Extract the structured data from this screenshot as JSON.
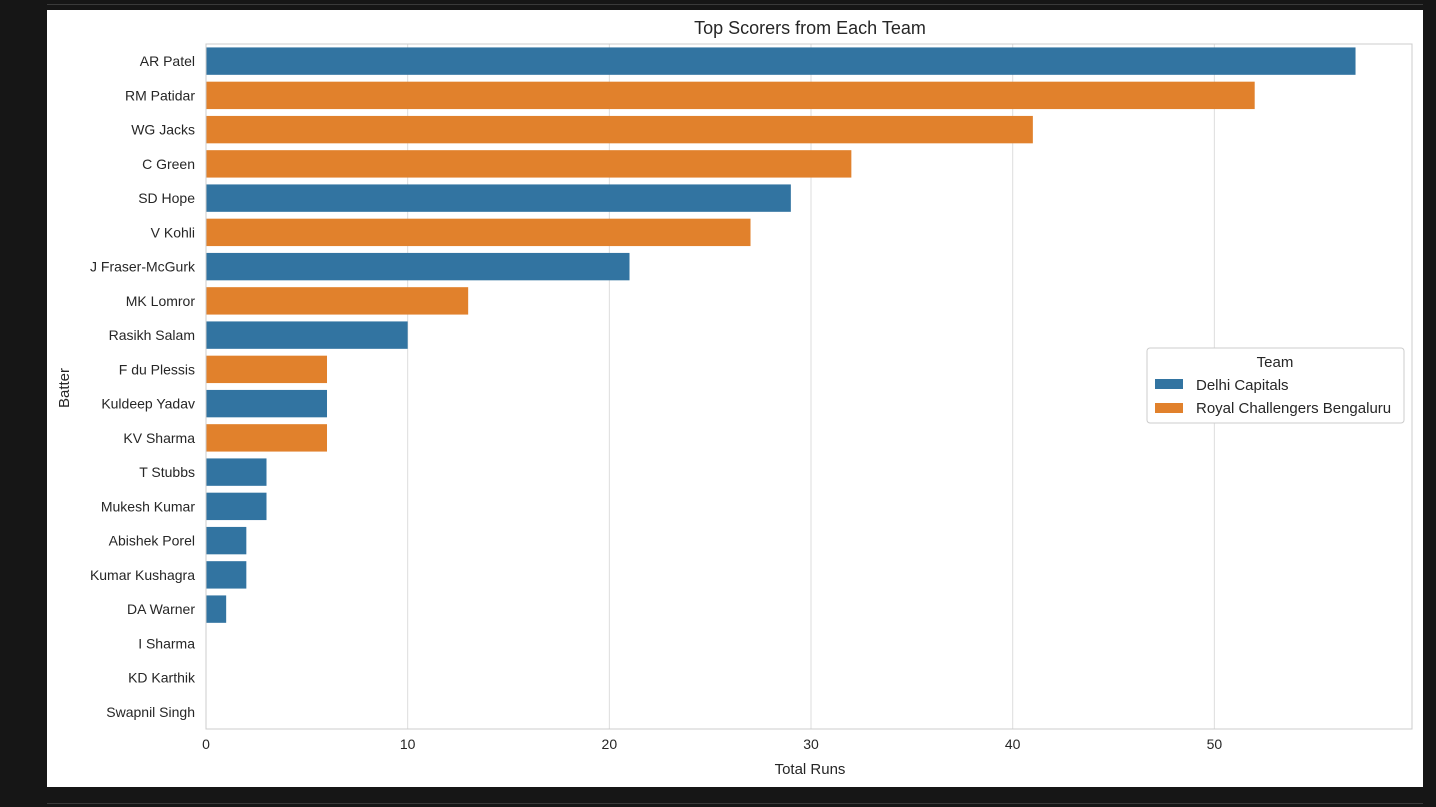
{
  "chart_data": {
    "type": "bar",
    "orientation": "horizontal",
    "title": "Top Scorers from Each Team",
    "xlabel": "Total Runs",
    "ylabel": "Batter",
    "xlim": [
      0,
      59.8
    ],
    "xticks": [
      0,
      10,
      20,
      30,
      40,
      50
    ],
    "grid": true,
    "legend": {
      "title": "Team",
      "placement": "center-right",
      "entries": [
        {
          "name": "Delhi Capitals",
          "color": "#3274a1"
        },
        {
          "name": "Royal Challengers Bengaluru",
          "color": "#e1812c"
        }
      ]
    },
    "categories": [
      "AR Patel",
      "RM Patidar",
      "WG Jacks",
      "C Green",
      "SD Hope",
      "V Kohli",
      "J Fraser-McGurk",
      "MK Lomror",
      "Rasikh Salam",
      "F du Plessis",
      "Kuldeep Yadav",
      "KV Sharma",
      "T Stubbs",
      "Mukesh Kumar",
      "Abishek Porel",
      "Kumar Kushagra",
      "DA Warner",
      "I Sharma",
      "KD Karthik",
      "Swapnil Singh"
    ],
    "values": [
      57,
      52,
      41,
      32,
      29,
      27,
      21,
      13,
      10,
      6,
      6,
      6,
      3,
      3,
      2,
      2,
      1,
      0,
      0,
      0
    ],
    "teams": [
      "Delhi Capitals",
      "Royal Challengers Bengaluru",
      "Royal Challengers Bengaluru",
      "Royal Challengers Bengaluru",
      "Delhi Capitals",
      "Royal Challengers Bengaluru",
      "Delhi Capitals",
      "Royal Challengers Bengaluru",
      "Delhi Capitals",
      "Royal Challengers Bengaluru",
      "Delhi Capitals",
      "Royal Challengers Bengaluru",
      "Delhi Capitals",
      "Delhi Capitals",
      "Delhi Capitals",
      "Delhi Capitals",
      "Delhi Capitals",
      "Delhi Capitals",
      "Royal Challengers Bengaluru",
      "Royal Challengers Bengaluru"
    ]
  }
}
